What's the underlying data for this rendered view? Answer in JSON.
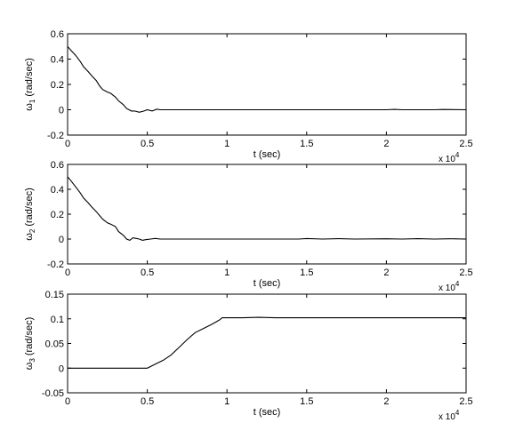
{
  "chart_data": [
    {
      "type": "line",
      "title": "",
      "xlabel": "t (sec)",
      "ylabel": "ω1 (rad/sec)",
      "ylabel_symbol": "ω",
      "ylabel_sub": "1",
      "ylabel_rest": " (rad/sec)",
      "xlim": [
        0,
        2.5
      ],
      "ylim": [
        -0.2,
        0.6
      ],
      "x_multiplier": "x 10",
      "x_multiplier_exp": "4",
      "xticks": [
        0,
        0.5,
        1,
        1.5,
        2,
        2.5
      ],
      "xtick_labels": [
        "0",
        "0.5",
        "1",
        "1.5",
        "2",
        "2.5"
      ],
      "yticks": [
        -0.2,
        0,
        0.2,
        0.4,
        0.6
      ],
      "ytick_labels": [
        "-0.2",
        "0",
        "0.2",
        "0.4",
        "0.6"
      ],
      "grid": false,
      "series": [
        {
          "x": [
            0,
            0.02,
            0.05,
            0.08,
            0.1,
            0.13,
            0.15,
            0.18,
            0.2,
            0.22,
            0.25,
            0.27,
            0.3,
            0.32,
            0.35,
            0.37,
            0.4,
            0.42,
            0.45,
            0.48,
            0.5,
            0.53,
            0.56,
            0.58,
            0.6,
            1.0,
            1.5,
            1.8,
            2.0,
            2.05,
            2.1,
            2.3,
            2.35,
            2.5
          ],
          "y": [
            0.5,
            0.47,
            0.43,
            0.38,
            0.34,
            0.3,
            0.27,
            0.23,
            0.19,
            0.16,
            0.14,
            0.13,
            0.1,
            0.07,
            0.04,
            0.01,
            -0.01,
            -0.01,
            -0.02,
            -0.01,
            0.0,
            -0.01,
            0.005,
            0.0,
            0.0,
            0.0,
            0.0,
            0.0,
            0.0,
            0.003,
            0.0,
            0.0,
            0.002,
            0.0
          ]
        }
      ]
    },
    {
      "type": "line",
      "title": "",
      "xlabel": "t (sec)",
      "ylabel": "ω2 (rad/sec)",
      "ylabel_symbol": "ω",
      "ylabel_sub": "2",
      "ylabel_rest": " (rad/sec)",
      "xlim": [
        0,
        2.5
      ],
      "ylim": [
        -0.2,
        0.6
      ],
      "x_multiplier": "x 10",
      "x_multiplier_exp": "4",
      "xticks": [
        0,
        0.5,
        1,
        1.5,
        2,
        2.5
      ],
      "xtick_labels": [
        "0",
        "0.5",
        "1",
        "1.5",
        "2",
        "2.5"
      ],
      "yticks": [
        -0.2,
        0,
        0.2,
        0.4,
        0.6
      ],
      "ytick_labels": [
        "-0.2",
        "0",
        "0.2",
        "0.4",
        "0.6"
      ],
      "grid": false,
      "series": [
        {
          "x": [
            0,
            0.02,
            0.05,
            0.08,
            0.1,
            0.13,
            0.15,
            0.18,
            0.2,
            0.22,
            0.25,
            0.27,
            0.3,
            0.32,
            0.35,
            0.37,
            0.39,
            0.41,
            0.43,
            0.45,
            0.47,
            0.49,
            0.52,
            0.55,
            0.58,
            1.0,
            1.45,
            1.5,
            1.6,
            1.7,
            1.8,
            2.0,
            2.1,
            2.2,
            2.3,
            2.4,
            2.5
          ],
          "y": [
            0.5,
            0.47,
            0.42,
            0.37,
            0.33,
            0.29,
            0.26,
            0.22,
            0.19,
            0.16,
            0.13,
            0.12,
            0.1,
            0.06,
            0.03,
            0.0,
            -0.01,
            0.01,
            0.005,
            0.0,
            -0.01,
            -0.005,
            0.0,
            0.005,
            0.0,
            0.0,
            0.0,
            0.004,
            0.0,
            0.003,
            0.0,
            0.002,
            0.0,
            0.003,
            0.0,
            0.002,
            0.0
          ]
        }
      ]
    },
    {
      "type": "line",
      "title": "",
      "xlabel": "t (sec)",
      "ylabel": "ω3 (rad/sec)",
      "ylabel_symbol": "ω",
      "ylabel_sub": "3",
      "ylabel_rest": " (rad/sec)",
      "xlim": [
        0,
        2.5
      ],
      "ylim": [
        -0.05,
        0.15
      ],
      "x_multiplier": "x 10",
      "x_multiplier_exp": "4",
      "xticks": [
        0,
        0.5,
        1,
        1.5,
        2,
        2.5
      ],
      "xtick_labels": [
        "0",
        "0.5",
        "1",
        "1.5",
        "2",
        "2.5"
      ],
      "yticks": [
        -0.05,
        0,
        0.05,
        0.1,
        0.15
      ],
      "ytick_labels": [
        "-0.05",
        "0",
        "0.05",
        "0.1",
        "0.15"
      ],
      "grid": false,
      "series": [
        {
          "x": [
            0,
            0.5,
            0.55,
            0.6,
            0.65,
            0.7,
            0.75,
            0.8,
            0.85,
            0.9,
            0.95,
            0.97,
            1.0,
            1.1,
            1.2,
            1.3,
            1.5,
            2.0,
            2.5
          ],
          "y": [
            0.0,
            0.0,
            0.008,
            0.016,
            0.027,
            0.042,
            0.058,
            0.072,
            0.08,
            0.088,
            0.097,
            0.102,
            0.102,
            0.102,
            0.103,
            0.102,
            0.102,
            0.102,
            0.102
          ]
        }
      ]
    }
  ]
}
